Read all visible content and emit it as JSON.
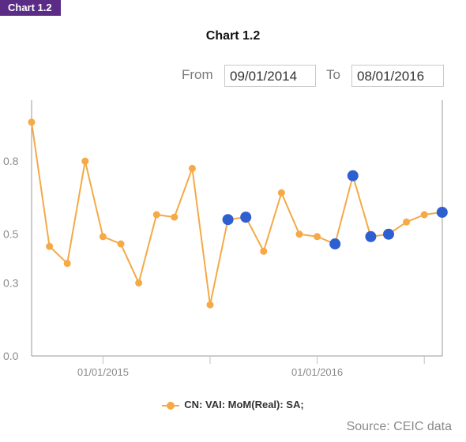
{
  "header": {
    "tag": "Chart 1.2",
    "title": "Chart 1.2"
  },
  "range": {
    "from_label": "From",
    "from_value": "09/01/2014",
    "to_label": "To",
    "to_value": "08/01/2016"
  },
  "legend": {
    "label": "CN: VAI: MoM(Real): SA;"
  },
  "source": "Source: CEIC data",
  "colors": {
    "line": "#f5a947",
    "highlight": "#2e5fd1",
    "tag_bg": "#5b2c86"
  },
  "chart_data": {
    "type": "line",
    "title": "Chart 1.2",
    "xlabel": "",
    "ylabel": "",
    "x_tick_labels": [
      "01/01/2015",
      "01/01/2016"
    ],
    "y_tick_labels": [
      "0.0",
      "0.3",
      "0.5",
      "0.8"
    ],
    "y_ticks": [
      0.0,
      0.3,
      0.5,
      0.8
    ],
    "ylim": [
      0.0,
      1.05
    ],
    "grid": false,
    "legend_position": "bottom",
    "series": [
      {
        "name": "CN: VAI: MoM(Real): SA;",
        "x": [
          "09/2014",
          "10/2014",
          "11/2014",
          "12/2014",
          "01/2015",
          "02/2015",
          "03/2015",
          "04/2015",
          "05/2015",
          "06/2015",
          "07/2015",
          "08/2015",
          "09/2015",
          "10/2015",
          "11/2015",
          "12/2015",
          "01/2016",
          "02/2016",
          "03/2016",
          "04/2016",
          "05/2016",
          "06/2016",
          "07/2016",
          "08/2016"
        ],
        "values": [
          0.96,
          0.45,
          0.38,
          0.8,
          0.49,
          0.46,
          0.3,
          0.58,
          0.57,
          0.77,
          0.21,
          0.56,
          0.57,
          0.43,
          0.67,
          0.5,
          0.49,
          0.46,
          0.74,
          0.49,
          0.5,
          0.55,
          0.58,
          0.59
        ],
        "highlighted_indices": [
          11,
          12,
          17,
          18,
          19,
          20,
          23
        ]
      }
    ]
  }
}
